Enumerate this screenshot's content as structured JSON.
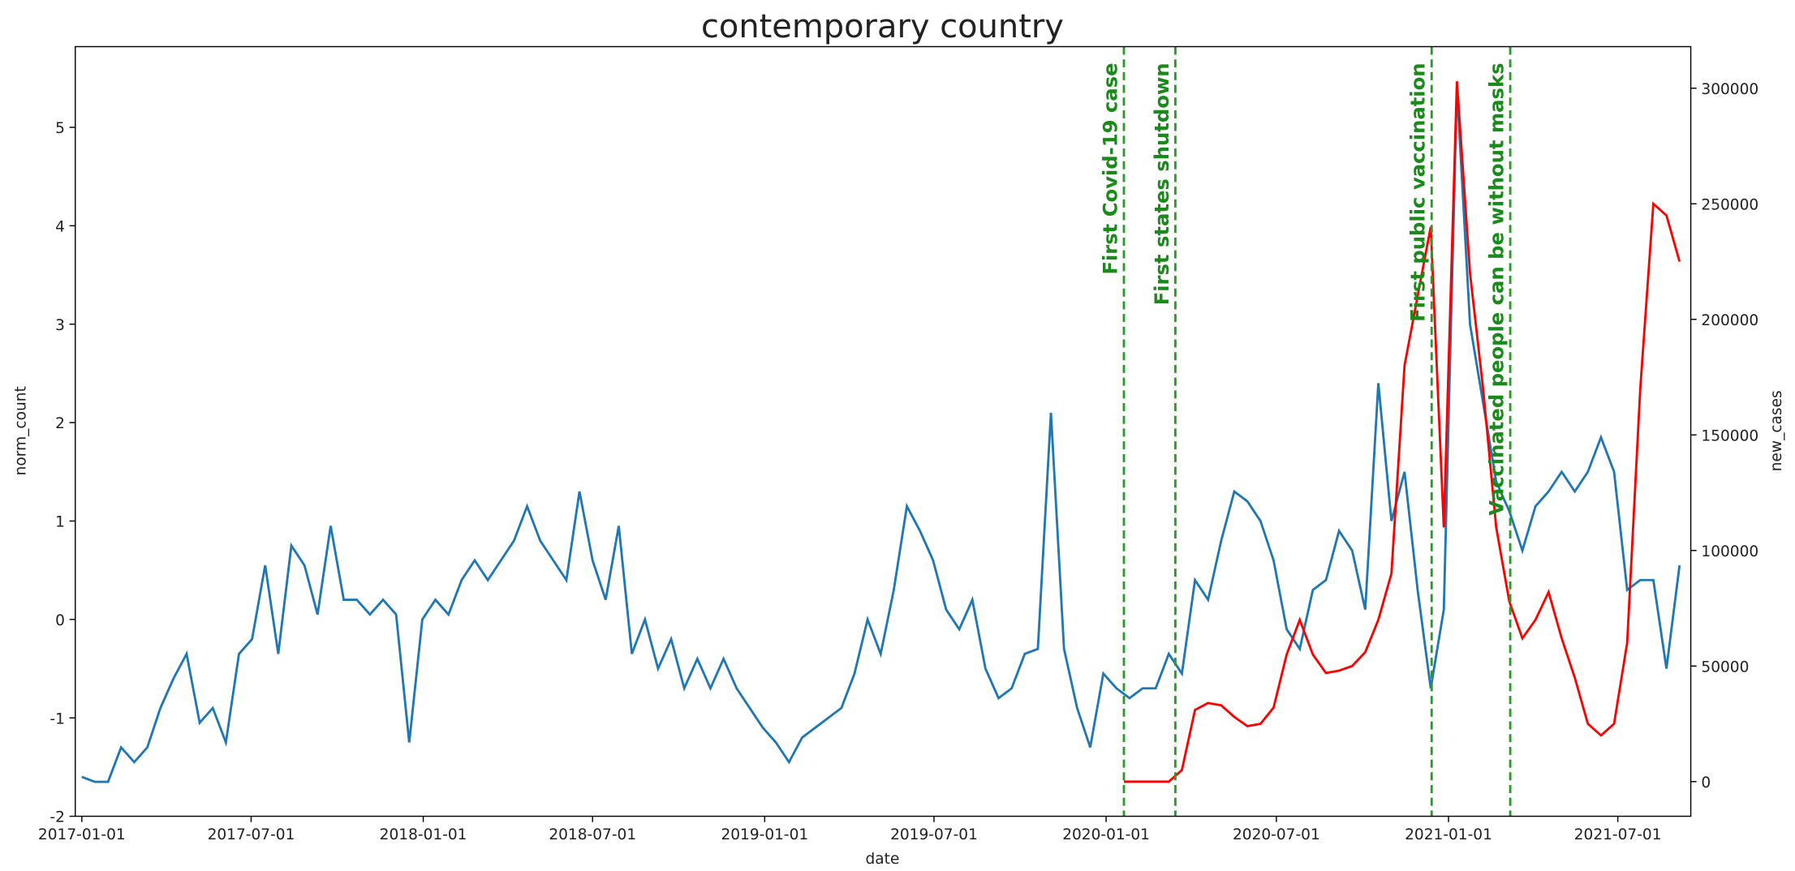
{
  "chart_data": {
    "type": "line",
    "title": "contemporary country",
    "xlabel": "date",
    "ylabel": "norm_count",
    "y2label": "new_cases",
    "xlim": [
      "2016-12-25",
      "2021-09-17"
    ],
    "xticks": [
      "2017-01-01",
      "2017-07-01",
      "2018-01-01",
      "2018-07-01",
      "2019-01-01",
      "2019-07-01",
      "2020-01-01",
      "2020-07-01",
      "2021-01-01",
      "2021-07-01"
    ],
    "ylim": [
      -2,
      5.82
    ],
    "yticks": [
      -2,
      -1,
      0,
      1,
      2,
      3,
      4,
      5
    ],
    "y2lim": [
      -15000,
      318000
    ],
    "y2ticks": [
      0,
      50000,
      100000,
      150000,
      200000,
      250000,
      300000
    ],
    "x": [
      "2017-01-01",
      "2017-01-15",
      "2017-01-29",
      "2017-02-12",
      "2017-02-26",
      "2017-03-12",
      "2017-03-26",
      "2017-04-09",
      "2017-04-23",
      "2017-05-07",
      "2017-05-21",
      "2017-06-04",
      "2017-06-18",
      "2017-07-02",
      "2017-07-16",
      "2017-07-30",
      "2017-08-13",
      "2017-08-27",
      "2017-09-10",
      "2017-09-24",
      "2017-10-08",
      "2017-10-22",
      "2017-11-05",
      "2017-11-19",
      "2017-12-03",
      "2017-12-17",
      "2017-12-31",
      "2018-01-14",
      "2018-01-28",
      "2018-02-11",
      "2018-02-25",
      "2018-03-11",
      "2018-03-25",
      "2018-04-08",
      "2018-04-22",
      "2018-05-06",
      "2018-05-20",
      "2018-06-03",
      "2018-06-17",
      "2018-07-01",
      "2018-07-15",
      "2018-07-29",
      "2018-08-12",
      "2018-08-26",
      "2018-09-09",
      "2018-09-23",
      "2018-10-07",
      "2018-10-21",
      "2018-11-04",
      "2018-11-18",
      "2018-12-02",
      "2018-12-16",
      "2018-12-30",
      "2019-01-13",
      "2019-01-27",
      "2019-02-10",
      "2019-02-24",
      "2019-03-10",
      "2019-03-24",
      "2019-04-07",
      "2019-04-21",
      "2019-05-05",
      "2019-05-19",
      "2019-06-02",
      "2019-06-16",
      "2019-06-30",
      "2019-07-14",
      "2019-07-28",
      "2019-08-11",
      "2019-08-25",
      "2019-09-08",
      "2019-09-22",
      "2019-10-06",
      "2019-10-20",
      "2019-11-03",
      "2019-11-17",
      "2019-12-01",
      "2019-12-15",
      "2019-12-29",
      "2020-01-12",
      "2020-01-26",
      "2020-02-09",
      "2020-02-23",
      "2020-03-08",
      "2020-03-22",
      "2020-04-05",
      "2020-04-19",
      "2020-05-03",
      "2020-05-17",
      "2020-05-31",
      "2020-06-14",
      "2020-06-28",
      "2020-07-12",
      "2020-07-26",
      "2020-08-09",
      "2020-08-23",
      "2020-09-06",
      "2020-09-20",
      "2020-10-04",
      "2020-10-18",
      "2020-11-01",
      "2020-11-15",
      "2020-11-29",
      "2020-12-13",
      "2020-12-27",
      "2021-01-10",
      "2021-01-24",
      "2021-02-07",
      "2021-02-21",
      "2021-03-07",
      "2021-03-21",
      "2021-04-04",
      "2021-04-18",
      "2021-05-02",
      "2021-05-16",
      "2021-05-30",
      "2021-06-13",
      "2021-06-27",
      "2021-07-11",
      "2021-07-25",
      "2021-08-08",
      "2021-08-22",
      "2021-09-05"
    ],
    "series": [
      {
        "color": "#1f77b4",
        "values": [
          -1.6,
          -1.65,
          -1.65,
          -1.3,
          -1.45,
          -1.3,
          -0.9,
          -0.6,
          -0.35,
          -1.05,
          -0.9,
          -1.25,
          -0.35,
          -0.2,
          0.55,
          -0.35,
          0.75,
          0.55,
          0.05,
          0.95,
          0.2,
          0.2,
          0.05,
          0.2,
          0.05,
          -1.25,
          0.0,
          0.2,
          0.05,
          0.4,
          0.6,
          0.4,
          0.6,
          0.8,
          1.15,
          0.8,
          0.6,
          0.4,
          1.3,
          0.6,
          0.2,
          0.95,
          -0.35,
          0.0,
          -0.5,
          -0.2,
          -0.7,
          -0.4,
          -0.7,
          -0.4,
          -0.7,
          -0.9,
          -1.1,
          -1.25,
          -1.45,
          -1.2,
          -1.1,
          -1.0,
          -0.9,
          -0.55,
          0.0,
          -0.35,
          0.3,
          1.15,
          0.9,
          0.6,
          0.1,
          -0.1,
          0.2,
          -0.5,
          -0.8,
          -0.7,
          -0.35,
          -0.3,
          2.1,
          -0.3,
          -0.9,
          -1.3,
          -0.55,
          -0.7,
          -0.8,
          -0.7,
          -0.7,
          -0.35,
          -0.55,
          0.4,
          0.2,
          0.8,
          1.3,
          1.2,
          1.0,
          0.6,
          -0.1,
          -0.3,
          0.3,
          0.4,
          0.9,
          0.7,
          0.1,
          2.4,
          1.0,
          1.5,
          0.3,
          -0.7,
          0.1,
          5.4,
          3.0,
          2.2,
          1.4,
          1.1,
          0.7,
          1.15,
          1.3,
          1.5,
          1.3,
          1.5,
          1.85,
          1.5,
          0.3,
          0.4,
          0.4,
          -0.5,
          0.55
        ]
      },
      {
        "color": "#ff0000",
        "axis": "y2",
        "x": [
          "2020-01-20",
          "2020-02-09",
          "2020-02-23",
          "2020-03-08",
          "2020-03-22",
          "2020-04-05",
          "2020-04-19",
          "2020-05-03",
          "2020-05-17",
          "2020-05-31",
          "2020-06-14",
          "2020-06-28",
          "2020-07-12",
          "2020-07-26",
          "2020-08-09",
          "2020-08-23",
          "2020-09-06",
          "2020-09-20",
          "2020-10-04",
          "2020-10-18",
          "2020-11-01",
          "2020-11-15",
          "2020-11-29",
          "2020-12-13",
          "2020-12-27",
          "2021-01-10",
          "2021-01-24",
          "2021-02-07",
          "2021-02-21",
          "2021-03-07",
          "2021-03-21",
          "2021-04-04",
          "2021-04-18",
          "2021-05-02",
          "2021-05-16",
          "2021-05-30",
          "2021-06-13",
          "2021-06-27",
          "2021-07-11",
          "2021-07-25",
          "2021-08-08",
          "2021-08-22",
          "2021-09-05"
        ],
        "values": [
          0,
          0,
          0,
          0,
          5000,
          31000,
          34000,
          33000,
          28000,
          24000,
          25000,
          32000,
          55000,
          70000,
          55000,
          47000,
          48000,
          50000,
          56000,
          70000,
          90000,
          180000,
          210000,
          240000,
          110000,
          303000,
          220000,
          170000,
          110000,
          78000,
          62000,
          70000,
          82000,
          62000,
          45000,
          25000,
          20000,
          25000,
          60000,
          170000,
          250000,
          245000,
          225000
        ]
      }
    ],
    "annotations": [
      {
        "x": "2020-01-20",
        "text": "First Covid-19 case"
      },
      {
        "x": "2020-03-15",
        "text": "First states shutdown"
      },
      {
        "x": "2020-12-14",
        "text": "First public vaccination"
      },
      {
        "x": "2021-03-08",
        "text": "Vaccinated people can be without masks"
      }
    ]
  }
}
